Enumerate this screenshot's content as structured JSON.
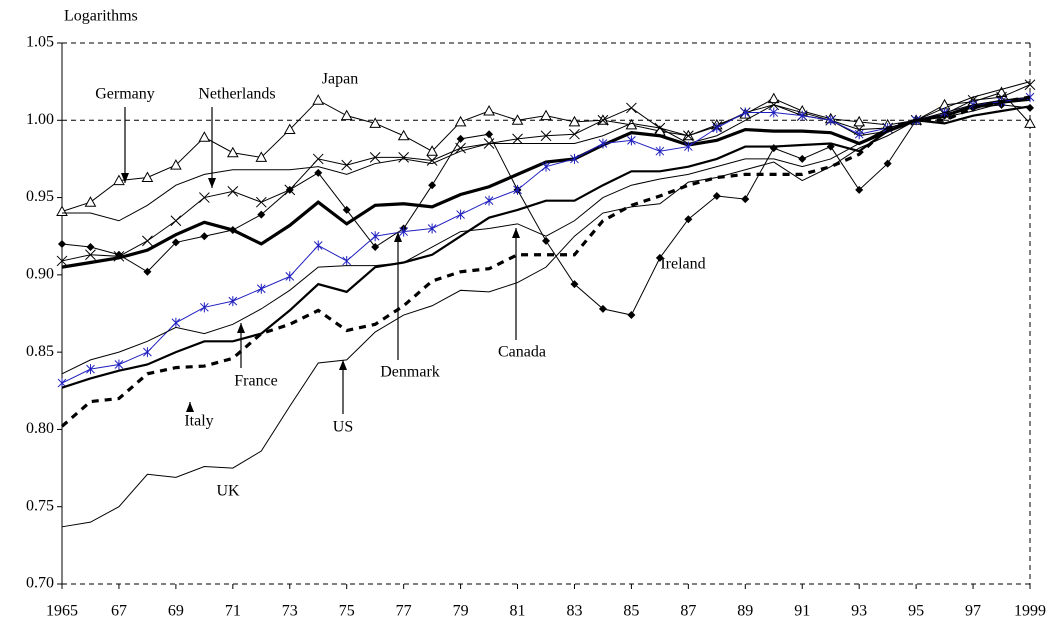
{
  "chart_data": {
    "type": "line",
    "y_label": "Logarithms",
    "x": [
      1965,
      1966,
      1967,
      1968,
      1969,
      1970,
      1971,
      1972,
      1973,
      1974,
      1975,
      1976,
      1977,
      1978,
      1979,
      1980,
      1981,
      1982,
      1983,
      1984,
      1985,
      1986,
      1987,
      1988,
      1989,
      1990,
      1991,
      1992,
      1993,
      1994,
      1995,
      1996,
      1997,
      1998,
      1999
    ],
    "xlim": [
      1965,
      1999
    ],
    "xticks": [
      {
        "value": 1965,
        "label": "1965"
      },
      {
        "value": 1967,
        "label": "67"
      },
      {
        "value": 1969,
        "label": "69"
      },
      {
        "value": 1971,
        "label": "71"
      },
      {
        "value": 1973,
        "label": "73"
      },
      {
        "value": 1975,
        "label": "75"
      },
      {
        "value": 1977,
        "label": "77"
      },
      {
        "value": 1979,
        "label": "79"
      },
      {
        "value": 1981,
        "label": "81"
      },
      {
        "value": 1983,
        "label": "83"
      },
      {
        "value": 1985,
        "label": "85"
      },
      {
        "value": 1987,
        "label": "87"
      },
      {
        "value": 1989,
        "label": "89"
      },
      {
        "value": 1991,
        "label": "91"
      },
      {
        "value": 1993,
        "label": "93"
      },
      {
        "value": 1995,
        "label": "95"
      },
      {
        "value": 1997,
        "label": "97"
      },
      {
        "value": 1999,
        "label": "1999"
      }
    ],
    "ylim": [
      0.7,
      1.05
    ],
    "yticks": [
      {
        "value": 0.7,
        "label": "0.70"
      },
      {
        "value": 0.75,
        "label": "0.75"
      },
      {
        "value": 0.8,
        "label": "0.80"
      },
      {
        "value": 0.85,
        "label": "0.85"
      },
      {
        "value": 0.9,
        "label": "0.90"
      },
      {
        "value": 0.95,
        "label": "0.95"
      },
      {
        "value": 1,
        "label": "1.00"
      },
      {
        "value": 1.05,
        "label": "1.05"
      }
    ],
    "reference_line": 1,
    "series": [
      {
        "name": "Japan",
        "color": "#000000",
        "marker": "triangle",
        "style": "thin",
        "values": [
          0.941,
          0.947,
          0.961,
          0.963,
          0.971,
          0.989,
          0.979,
          0.976,
          0.994,
          1.013,
          1.003,
          0.998,
          0.99,
          0.98,
          0.999,
          1.006,
          1.0,
          1.003,
          0.999,
          1.0,
          0.997,
          0.993,
          0.99,
          0.997,
          1.004,
          1.014,
          1.006,
          1.001,
          0.999,
          0.997,
          1.0,
          1.01,
          1.012,
          1.018,
          0.998
        ]
      },
      {
        "name": "Germany",
        "color": "#000000",
        "marker": "none",
        "style": "thin",
        "values": [
          0.94,
          0.94,
          0.935,
          0.945,
          0.958,
          0.965,
          0.968,
          0.968,
          0.968,
          0.97,
          0.965,
          0.972,
          0.975,
          0.972,
          0.98,
          0.985,
          0.985,
          0.985,
          0.985,
          0.99,
          0.998,
          0.995,
          0.985,
          0.99,
          1.0,
          1.01,
          1.005,
          1.0,
          0.99,
          0.993,
          1.0,
          1.008,
          1.015,
          1.02,
          1.025
        ]
      },
      {
        "name": "Netherlands",
        "color": "#000000",
        "marker": "cross",
        "style": "thin",
        "values": [
          0.909,
          0.913,
          0.912,
          0.922,
          0.935,
          0.95,
          0.954,
          0.947,
          0.955,
          0.975,
          0.971,
          0.976,
          0.976,
          0.974,
          0.982,
          0.985,
          0.988,
          0.99,
          0.991,
          1.0,
          1.008,
          0.995,
          0.99,
          0.996,
          1.005,
          1.01,
          1.003,
          1.0,
          0.994,
          0.995,
          1.0,
          1.004,
          1.013,
          1.015,
          1.023
        ]
      },
      {
        "name": "Ireland",
        "color": "#000000",
        "marker": "diamond",
        "style": "thin",
        "values": [
          0.92,
          0.918,
          0.913,
          0.902,
          0.921,
          0.925,
          0.929,
          0.939,
          0.955,
          0.966,
          0.942,
          0.918,
          0.93,
          0.958,
          0.988,
          0.991,
          0.955,
          0.922,
          0.894,
          0.878,
          0.874,
          0.911,
          0.936,
          0.951,
          0.949,
          0.982,
          0.975,
          0.983,
          0.955,
          0.972,
          1.0,
          1.003,
          1.008,
          1.01,
          1.008
        ]
      },
      {
        "name": "Denmark",
        "color": "#000000",
        "marker": "none",
        "style": "thick",
        "values": [
          0.905,
          0.908,
          0.911,
          0.916,
          0.926,
          0.934,
          0.929,
          0.92,
          0.932,
          0.947,
          0.933,
          0.945,
          0.946,
          0.944,
          0.952,
          0.957,
          0.965,
          0.973,
          0.975,
          0.984,
          0.992,
          0.99,
          0.984,
          0.987,
          0.994,
          0.993,
          0.993,
          0.992,
          0.985,
          0.993,
          1.0,
          1.003,
          1.009,
          1.012,
          1.014
        ]
      },
      {
        "name": "France",
        "color": "#1f1fbf",
        "marker": "asterisk",
        "style": "thin",
        "values": [
          0.83,
          0.839,
          0.842,
          0.85,
          0.869,
          0.879,
          0.883,
          0.891,
          0.899,
          0.919,
          0.909,
          0.925,
          0.928,
          0.93,
          0.939,
          0.948,
          0.955,
          0.97,
          0.975,
          0.985,
          0.987,
          0.98,
          0.983,
          0.995,
          1.005,
          1.005,
          1.003,
          1.0,
          0.991,
          0.995,
          1.0,
          1.005,
          1.01,
          1.012,
          1.015
        ]
      },
      {
        "name": "Canada",
        "color": "#000000",
        "marker": "none",
        "style": "thin",
        "values": [
          0.836,
          0.845,
          0.85,
          0.857,
          0.866,
          0.862,
          0.868,
          0.878,
          0.89,
          0.905,
          0.906,
          0.906,
          0.908,
          0.918,
          0.928,
          0.93,
          0.933,
          0.925,
          0.935,
          0.95,
          0.958,
          0.962,
          0.965,
          0.97,
          0.975,
          0.975,
          0.97,
          0.975,
          0.985,
          0.995,
          1.0,
          1.005,
          1.01,
          1.013,
          1.015
        ]
      },
      {
        "name": "Italy",
        "color": "#000000",
        "marker": "none",
        "style": "medium",
        "values": [
          0.827,
          0.833,
          0.838,
          0.842,
          0.85,
          0.857,
          0.857,
          0.862,
          0.877,
          0.894,
          0.889,
          0.905,
          0.908,
          0.913,
          0.925,
          0.937,
          0.942,
          0.948,
          0.948,
          0.958,
          0.967,
          0.967,
          0.97,
          0.975,
          0.983,
          0.983,
          0.984,
          0.985,
          0.98,
          0.993,
          1.0,
          0.998,
          1.003,
          1.006,
          1.009
        ]
      },
      {
        "name": "US",
        "color": "#000000",
        "marker": "none",
        "style": "dashed",
        "values": [
          0.802,
          0.818,
          0.82,
          0.836,
          0.84,
          0.841,
          0.846,
          0.862,
          0.868,
          0.877,
          0.864,
          0.868,
          0.88,
          0.896,
          0.902,
          0.904,
          0.913,
          0.913,
          0.913,
          0.935,
          0.945,
          0.951,
          0.958,
          0.963,
          0.965,
          0.965,
          0.965,
          0.97,
          0.978,
          0.995,
          1.0,
          1.0,
          1.008,
          1.012,
          1.015
        ]
      },
      {
        "name": "UK",
        "color": "#000000",
        "marker": "none",
        "style": "thin",
        "values": [
          0.737,
          0.74,
          0.75,
          0.771,
          0.769,
          0.776,
          0.775,
          0.786,
          0.815,
          0.843,
          0.845,
          0.863,
          0.874,
          0.88,
          0.89,
          0.889,
          0.895,
          0.905,
          0.925,
          0.94,
          0.944,
          0.946,
          0.96,
          0.963,
          0.968,
          0.973,
          0.961,
          0.97,
          0.982,
          0.99,
          1.0,
          1.002,
          1.006,
          1.011,
          1.013
        ]
      }
    ]
  }
}
